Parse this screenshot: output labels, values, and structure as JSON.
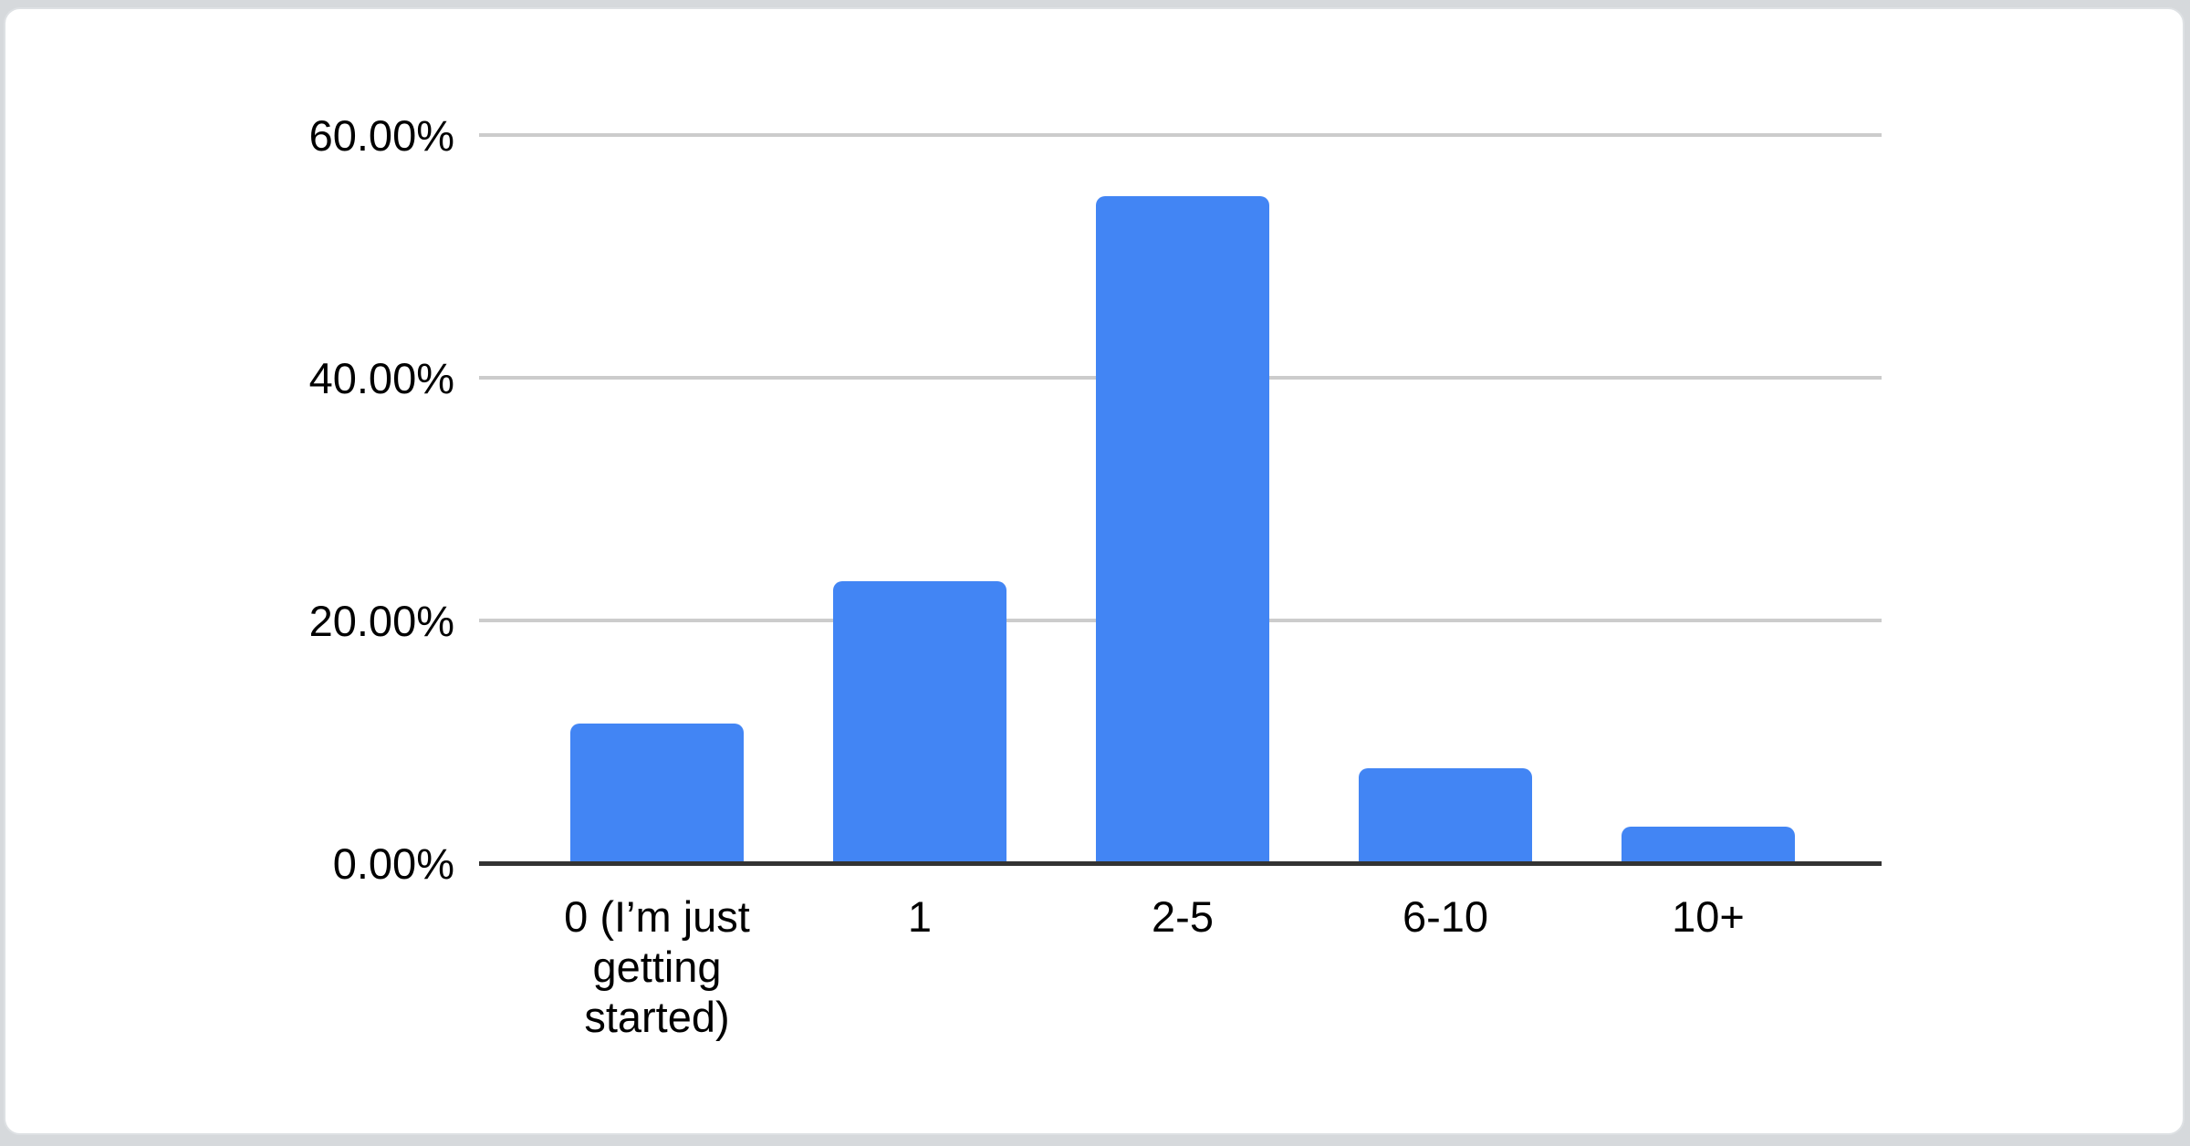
{
  "chart_data": {
    "type": "bar",
    "title": "",
    "xlabel": "",
    "ylabel": "",
    "categories": [
      "0 (I’m just getting started)",
      "1",
      "2-5",
      "6-10",
      "10+"
    ],
    "values": [
      11.5,
      23.2,
      55.0,
      7.8,
      3.0
    ],
    "value_unit": "%",
    "ylim": [
      0,
      60
    ],
    "ytick_values": [
      0,
      20,
      40,
      60
    ],
    "ytick_labels": [
      "0.00%",
      "20.00%",
      "40.00%",
      "60.00%"
    ],
    "grid": true,
    "legend_position": "none",
    "colors": {
      "bar": "#4285f4",
      "axis_line": "#333333",
      "gridline": "#cccccc",
      "label_text": "#000000",
      "card_background": "#ffffff",
      "card_border": "#dee1e4",
      "page_background": "#d6d9dc"
    }
  }
}
